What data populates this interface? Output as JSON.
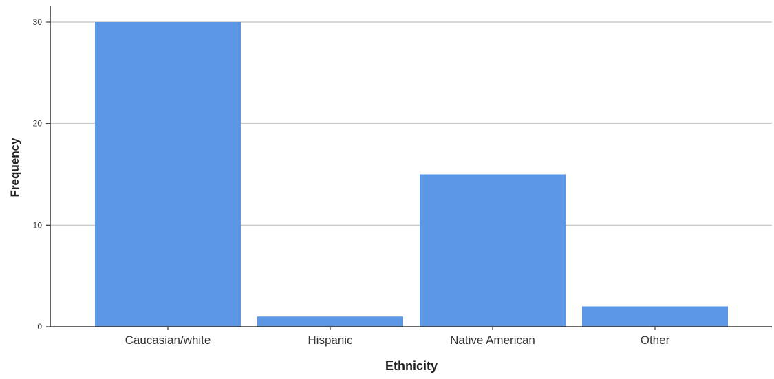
{
  "chart_data": {
    "type": "bar",
    "categories": [
      "Caucasian/white",
      "Hispanic",
      "Native American",
      "Other"
    ],
    "values": [
      30,
      1,
      15,
      2
    ],
    "title": "",
    "xlabel": "Ethnicity",
    "ylabel": "Frequency",
    "ylim": [
      0,
      30
    ],
    "yticks": [
      "0",
      "10",
      "20",
      "30"
    ],
    "grid": true,
    "colors": {
      "bar": "#5b97e5",
      "grid": "#cccccc",
      "axis": "#333333"
    }
  }
}
